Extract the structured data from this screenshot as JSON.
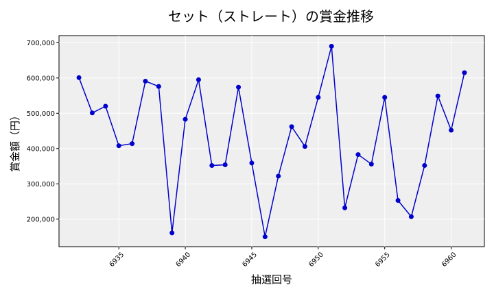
{
  "chart_data": {
    "type": "line",
    "title": "セット（ストレート）の賞金推移",
    "xlabel": "抽選回号",
    "ylabel": "賞金額（円）",
    "xlim": [
      6930.5,
      6962.5
    ],
    "ylim": [
      122000,
      720000
    ],
    "x_ticks": [
      6935,
      6940,
      6945,
      6950,
      6955,
      6960
    ],
    "y_ticks": [
      200000,
      300000,
      400000,
      500000,
      600000,
      700000
    ],
    "y_tick_labels": [
      "200,000",
      "300,000",
      "400,000",
      "500,000",
      "600,000",
      "700,000"
    ],
    "grid": true,
    "series": [
      {
        "color": "#0000cc",
        "x": [
          6932,
          6933,
          6934,
          6935,
          6936,
          6937,
          6938,
          6939,
          6940,
          6941,
          6942,
          6943,
          6944,
          6945,
          6946,
          6947,
          6948,
          6949,
          6950,
          6951,
          6952,
          6953,
          6954,
          6955,
          6956,
          6957,
          6958,
          6959,
          6960,
          6961
        ],
        "y": [
          601000,
          501000,
          520000,
          408000,
          414000,
          591000,
          576000,
          161000,
          483000,
          595000,
          352000,
          354000,
          574000,
          359000,
          150000,
          322000,
          462000,
          406000,
          545000,
          690000,
          232000,
          383000,
          356000,
          545000,
          253000,
          207000,
          352000,
          549000,
          452000,
          615000
        ]
      }
    ]
  }
}
